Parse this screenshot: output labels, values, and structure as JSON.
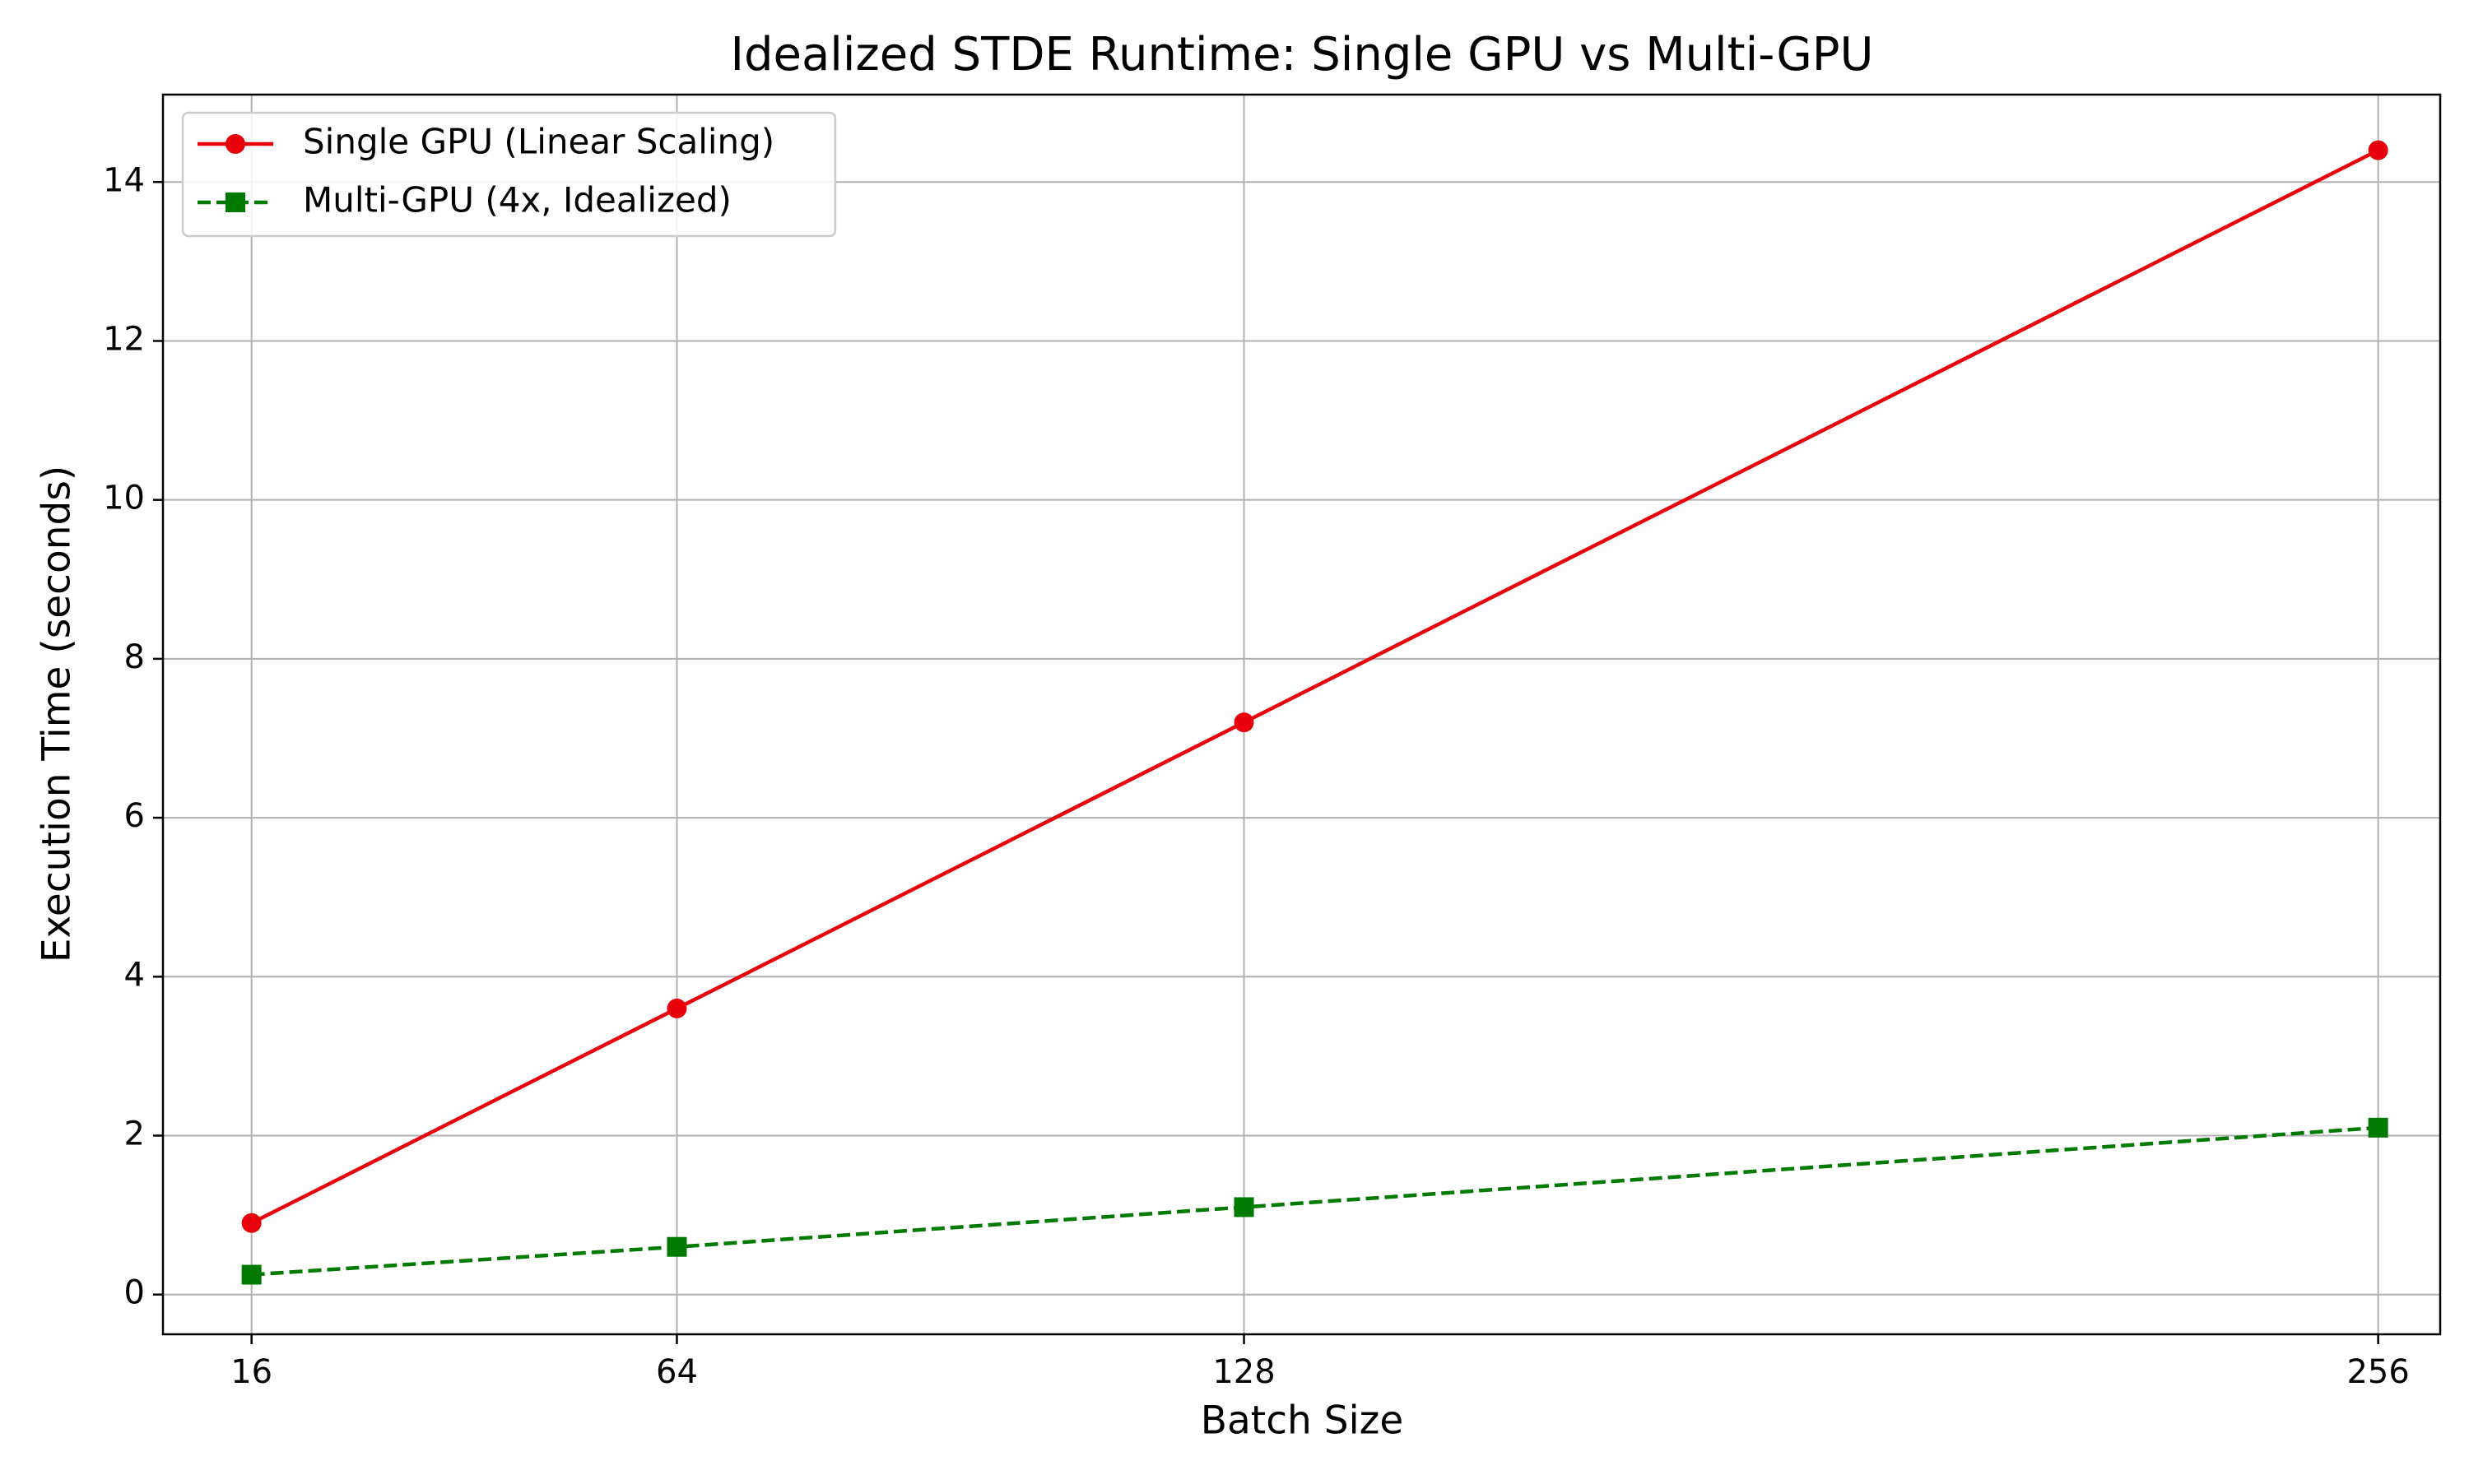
{
  "chart_data": {
    "type": "line",
    "title": "Idealized STDE Runtime: Single GPU vs Multi-GPU",
    "xlabel": "Batch Size",
    "ylabel": "Execution Time (seconds)",
    "x": [
      16,
      64,
      128,
      256
    ],
    "x_tick_labels": [
      "16",
      "64",
      "128",
      "256"
    ],
    "xlim": [
      6,
      263
    ],
    "ylim": [
      -0.5,
      15.1
    ],
    "y_ticks": [
      0,
      2,
      4,
      6,
      8,
      10,
      12,
      14
    ],
    "y_tick_labels": [
      "0",
      "2",
      "4",
      "6",
      "8",
      "10",
      "12",
      "14"
    ],
    "grid": true,
    "legend_position": "upper-left",
    "series": [
      {
        "name": "Single GPU (Linear Scaling)",
        "values": [
          0.9,
          3.6,
          7.2,
          14.4
        ],
        "color": "#e8000b",
        "line_style": "solid",
        "marker": "circle"
      },
      {
        "name": "Multi-GPU (4x, Idealized)",
        "values": [
          0.25,
          0.6,
          1.1,
          2.1
        ],
        "color": "#007a00",
        "line_style": "dashed",
        "marker": "square"
      }
    ]
  }
}
